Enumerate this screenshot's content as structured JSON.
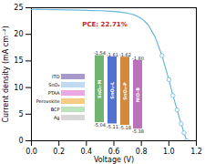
{
  "chart_data": [
    {
      "type": "line",
      "title": "",
      "xlabel": "Voltage (V)",
      "ylabel": "Current density (mA cm⁻²)",
      "series": [
        {
          "type": "line",
          "color": "#6ab8d8",
          "x": [
            0.0,
            0.05,
            0.1,
            0.15,
            0.2,
            0.25,
            0.3,
            0.35,
            0.4,
            0.45,
            0.5,
            0.55,
            0.6,
            0.65,
            0.7,
            0.75,
            0.8,
            0.85,
            0.9,
            0.95,
            1.0,
            1.03,
            1.06,
            1.09,
            1.11,
            1.13
          ],
          "values": [
            24.7,
            24.68,
            24.66,
            24.64,
            24.62,
            24.6,
            24.58,
            24.55,
            24.52,
            24.48,
            24.44,
            24.38,
            24.3,
            24.18,
            23.98,
            23.65,
            23.0,
            21.8,
            19.5,
            16.0,
            11.5,
            8.5,
            5.8,
            3.2,
            1.5,
            0.0
          ]
        },
        {
          "type": "scatter",
          "marker": "o",
          "color": "#6ab8d8",
          "x": [
            0.95,
            1.0,
            1.03,
            1.06,
            1.09,
            1.11,
            1.13
          ],
          "values": [
            16.0,
            11.5,
            8.5,
            5.8,
            3.2,
            1.5,
            0.0
          ]
        }
      ],
      "annotations": [
        {
          "text": "PCE: 22.71%",
          "x": 0.37,
          "y": 21.5,
          "color": "#cc2222"
        }
      ],
      "xlim": [
        0.0,
        1.2
      ],
      "ylim": [
        0,
        25
      ],
      "xticks": [
        {
          "value": 0.0,
          "label": "0.0"
        },
        0.2,
        0.4,
        0.6,
        0.8,
        {
          "value": 1.0,
          "label": "1.0"
        },
        1.2
      ],
      "yticks": [
        0,
        5,
        10,
        15,
        20,
        25
      ],
      "grid": false
    },
    {
      "type": "layer_stack",
      "categories": [
        "Ag",
        "BCP",
        "Perovskite",
        "PTAA",
        "SnO₂",
        "ITO"
      ],
      "colors": [
        "#d4d4d4",
        "#b8e0b8",
        "#f5c87a",
        "#e8a0e0",
        "#b8d8f0",
        "#a090c8"
      ],
      "tick_labels": "y"
    },
    {
      "type": "bar",
      "categories": [
        "SnO₂-M",
        "SnO₂-L",
        "SnO₂-P",
        "NiO-B"
      ],
      "high": [
        -1.54,
        -1.61,
        -1.62,
        -1.8
      ],
      "high_labels": [
        "-1.54",
        "-1.61",
        "-1.62",
        "-1.80"
      ],
      "low": [
        -5.04,
        -5.11,
        -5.18,
        -5.38
      ],
      "low_labels": [
        "-5.04",
        "-5.11",
        "-5.18",
        "-5.38"
      ],
      "colors": [
        "#5da85d",
        "#3a5fcc",
        "#cc7722",
        "#b060b0"
      ],
      "ylim": [
        -5.8,
        -0.8
      ],
      "data_labels": true,
      "tick_labels": false
    }
  ]
}
